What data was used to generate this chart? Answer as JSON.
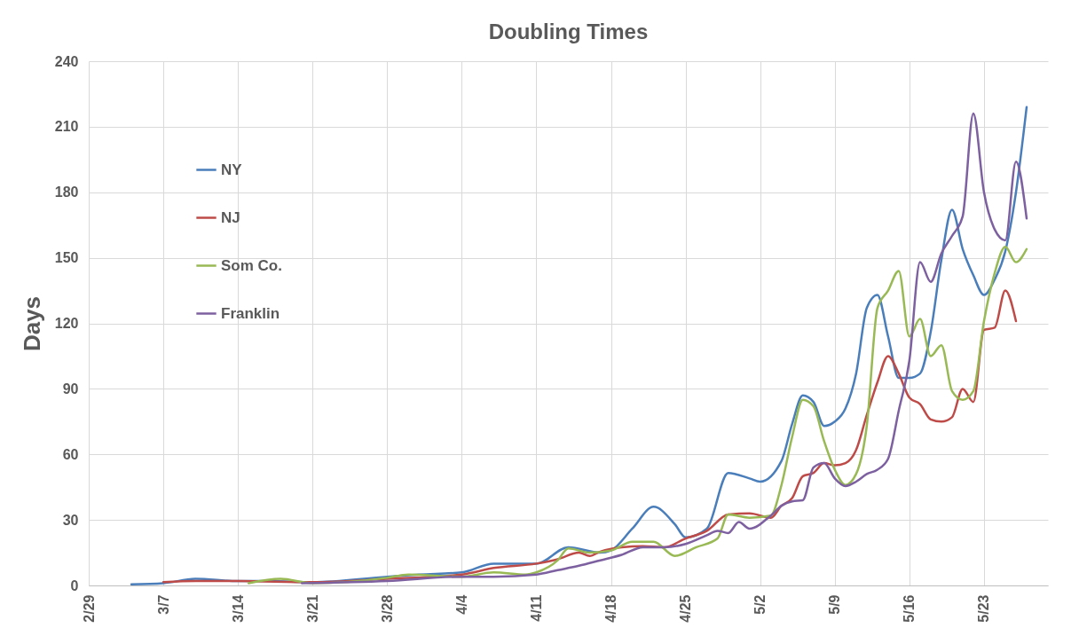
{
  "chart_data": {
    "type": "line",
    "title": "Doubling Times",
    "ylabel": "Days",
    "xlim": [
      "--02-29",
      "--05-29"
    ],
    "xticks": [
      {
        "value": "--02-29",
        "label": "2/29"
      },
      {
        "value": "--03-07",
        "label": "3/7"
      },
      {
        "value": "--03-14",
        "label": "3/14"
      },
      {
        "value": "--03-21",
        "label": "3/21"
      },
      {
        "value": "--03-28",
        "label": "3/28"
      },
      {
        "value": "--04-04",
        "label": "4/4"
      },
      {
        "value": "--04-11",
        "label": "4/11"
      },
      {
        "value": "--04-18",
        "label": "4/18"
      },
      {
        "value": "--04-25",
        "label": "4/25"
      },
      {
        "value": "--05-02",
        "label": "5/2"
      },
      {
        "value": "--05-09",
        "label": "5/9"
      },
      {
        "value": "--05-16",
        "label": "5/16"
      },
      {
        "value": "--05-23",
        "label": "5/23"
      }
    ],
    "ylim": [
      0,
      240
    ],
    "yticks": [
      0,
      30,
      60,
      90,
      120,
      150,
      180,
      210,
      240
    ],
    "grid": true,
    "legend": "top left",
    "marker": "none",
    "line_style": "solid",
    "series": [
      {
        "name": "NY",
        "color": "#4a7ebb",
        "x": [
          "--03-04",
          "--03-07",
          "--03-10",
          "--03-14",
          "--03-17",
          "--03-21",
          "--03-28",
          "--03-31",
          "--04-04",
          "--04-07",
          "--04-11",
          "--04-14",
          "--04-17",
          "--04-18",
          "--04-20",
          "--04-22",
          "--04-24",
          "--04-25",
          "--04-27",
          "--04-29",
          "--05-01",
          "--05-02",
          "--05-04",
          "--05-05",
          "--05-06",
          "--05-07",
          "--05-08",
          "--05-09",
          "--05-10",
          "--05-11",
          "--05-12",
          "--05-13",
          "--05-14",
          "--05-15",
          "--05-16",
          "--05-17",
          "--05-18",
          "--05-19",
          "--05-20",
          "--05-21",
          "--05-22",
          "--05-23",
          "--05-24",
          "--05-25",
          "--05-26",
          "--05-27"
        ],
        "values": [
          0.5,
          1,
          3,
          2,
          2,
          1.5,
          4,
          5,
          6,
          10,
          10,
          17.5,
          15,
          16,
          26,
          36,
          28,
          22,
          26,
          51.5,
          49,
          47.5,
          57,
          74,
          87,
          84,
          73,
          75,
          81,
          97,
          127,
          133,
          114,
          95,
          95,
          97,
          116,
          149,
          172,
          154,
          142,
          133,
          140,
          153,
          180,
          219
        ]
      },
      {
        "name": "NJ",
        "color": "#be4b48",
        "x": [
          "--03-07",
          "--03-10",
          "--03-14",
          "--03-21",
          "--03-28",
          "--04-04",
          "--04-07",
          "--04-11",
          "--04-13",
          "--04-15",
          "--04-16",
          "--04-17",
          "--04-19",
          "--04-21",
          "--04-23",
          "--04-25",
          "--04-27",
          "--04-29",
          "--05-01",
          "--05-03",
          "--05-04",
          "--05-05",
          "--05-06",
          "--05-07",
          "--05-08",
          "--05-09",
          "--05-10",
          "--05-11",
          "--05-12",
          "--05-13",
          "--05-14",
          "--05-15",
          "--05-16",
          "--05-17",
          "--05-18",
          "--05-19",
          "--05-20",
          "--05-21",
          "--05-22",
          "--05-23",
          "--05-24",
          "--05-25",
          "--05-26"
        ],
        "values": [
          1.5,
          2,
          2,
          1.5,
          3,
          5,
          8,
          10,
          12,
          15,
          13.5,
          15.5,
          17.5,
          18,
          17.5,
          21.5,
          25,
          32.5,
          33,
          31,
          36.5,
          40,
          50,
          51.5,
          56,
          55,
          56,
          62,
          78,
          93,
          105,
          97,
          86,
          83,
          76,
          75,
          77,
          90,
          84,
          117,
          118,
          135,
          121
        ]
      },
      {
        "name": "Som Co.",
        "color": "#98b954",
        "x": [
          "--03-15",
          "--03-18",
          "--03-21",
          "--03-28",
          "--03-30",
          "--04-04",
          "--04-07",
          "--04-10",
          "--04-11",
          "--04-13",
          "--04-14",
          "--04-16",
          "--04-18",
          "--04-20",
          "--04-22",
          "--04-24",
          "--04-26",
          "--04-28",
          "--04-29",
          "--05-01",
          "--05-03",
          "--05-04",
          "--05-05",
          "--05-06",
          "--05-07",
          "--05-08",
          "--05-09",
          "--05-10",
          "--05-11",
          "--05-12",
          "--05-13",
          "--05-14",
          "--05-15",
          "--05-16",
          "--05-17",
          "--05-18",
          "--05-19",
          "--05-20",
          "--05-21",
          "--05-22",
          "--05-23",
          "--05-24",
          "--05-25",
          "--05-26",
          "--05-27"
        ],
        "values": [
          1,
          3,
          1,
          3.5,
          5,
          4,
          6,
          5,
          6,
          11.5,
          17,
          15,
          16,
          20,
          20,
          13.5,
          17.5,
          21.5,
          32.5,
          31,
          32,
          46,
          68,
          85,
          82,
          66,
          53,
          46,
          51,
          73,
          127,
          135,
          144,
          114,
          122,
          105,
          110,
          89,
          85,
          89,
          121,
          143,
          155,
          148,
          154
        ]
      },
      {
        "name": "Franklin",
        "color": "#7d60a0",
        "x": [
          "--03-20",
          "--03-28",
          "--04-04",
          "--04-07",
          "--04-11",
          "--04-13",
          "--04-15",
          "--04-17",
          "--04-19",
          "--04-21",
          "--04-23",
          "--04-25",
          "--04-27",
          "--04-28",
          "--04-29",
          "--04-30",
          "--05-01",
          "--05-03",
          "--05-04",
          "--05-05",
          "--05-06",
          "--05-07",
          "--05-08",
          "--05-09",
          "--05-10",
          "--05-11",
          "--05-12",
          "--05-13",
          "--05-14",
          "--05-15",
          "--05-16",
          "--05-17",
          "--05-18",
          "--05-19",
          "--05-20",
          "--05-21",
          "--05-22",
          "--05-23",
          "--05-24",
          "--05-25",
          "--05-26",
          "--05-27"
        ],
        "values": [
          1,
          2,
          4,
          4,
          5,
          7,
          9,
          11.5,
          14,
          17.5,
          17.5,
          19,
          23,
          25,
          24,
          29,
          26,
          32,
          36.5,
          38.5,
          39,
          54,
          56,
          49,
          45.5,
          47.5,
          51,
          53,
          58,
          80,
          103,
          148,
          139,
          152,
          160,
          169,
          216,
          180,
          163,
          158,
          194,
          168
        ]
      }
    ]
  }
}
